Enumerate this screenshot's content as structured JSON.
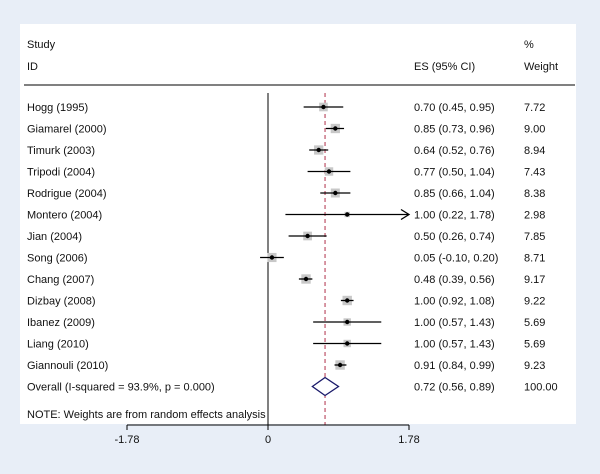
{
  "chart_data": {
    "type": "forest",
    "headers": {
      "study_line1": "Study",
      "study_line2": "ID",
      "es": "ES (95% CI)",
      "weight_line1": "%",
      "weight_line2": "Weight"
    },
    "studies": [
      {
        "id": "Hogg (1995)",
        "es": 0.7,
        "lo": 0.45,
        "hi": 0.95,
        "es_text": "0.70 (0.45, 0.95)",
        "weight": 7.72,
        "weight_text": "7.72"
      },
      {
        "id": "Giamarel (2000)",
        "es": 0.85,
        "lo": 0.73,
        "hi": 0.96,
        "es_text": "0.85 (0.73, 0.96)",
        "weight": 9.0,
        "weight_text": "9.00"
      },
      {
        "id": "Timurk (2003)",
        "es": 0.64,
        "lo": 0.52,
        "hi": 0.76,
        "es_text": "0.64 (0.52, 0.76)",
        "weight": 8.94,
        "weight_text": "8.94"
      },
      {
        "id": "Tripodi (2004)",
        "es": 0.77,
        "lo": 0.5,
        "hi": 1.04,
        "es_text": "0.77 (0.50, 1.04)",
        "weight": 7.43,
        "weight_text": "7.43"
      },
      {
        "id": "Rodrigue (2004)",
        "es": 0.85,
        "lo": 0.66,
        "hi": 1.04,
        "es_text": "0.85 (0.66, 1.04)",
        "weight": 8.38,
        "weight_text": "8.38"
      },
      {
        "id": "Montero (2004)",
        "es": 1.0,
        "lo": 0.22,
        "hi": 1.78,
        "es_text": "1.00 (0.22, 1.78)",
        "weight": 2.98,
        "weight_text": "2.98",
        "arrow_right": true
      },
      {
        "id": "Jian (2004)",
        "es": 0.5,
        "lo": 0.26,
        "hi": 0.74,
        "es_text": "0.50 (0.26, 0.74)",
        "weight": 7.85,
        "weight_text": "7.85"
      },
      {
        "id": "Song (2006)",
        "es": 0.05,
        "lo": -0.1,
        "hi": 0.2,
        "es_text": "0.05 (-0.10, 0.20)",
        "weight": 8.71,
        "weight_text": "8.71"
      },
      {
        "id": "Chang (2007)",
        "es": 0.48,
        "lo": 0.39,
        "hi": 0.56,
        "es_text": "0.48 (0.39, 0.56)",
        "weight": 9.17,
        "weight_text": "9.17"
      },
      {
        "id": "Dizbay (2008)",
        "es": 1.0,
        "lo": 0.92,
        "hi": 1.08,
        "es_text": "1.00 (0.92, 1.08)",
        "weight": 9.22,
        "weight_text": "9.22"
      },
      {
        "id": "Ibanez (2009)",
        "es": 1.0,
        "lo": 0.57,
        "hi": 1.43,
        "es_text": "1.00 (0.57, 1.43)",
        "weight": 5.69,
        "weight_text": "5.69"
      },
      {
        "id": "Liang (2010)",
        "es": 1.0,
        "lo": 0.57,
        "hi": 1.43,
        "es_text": "1.00 (0.57, 1.43)",
        "weight": 5.69,
        "weight_text": "5.69"
      },
      {
        "id": "Giannouli (2010)",
        "es": 0.91,
        "lo": 0.84,
        "hi": 0.99,
        "es_text": "0.91 (0.84, 0.99)",
        "weight": 9.23,
        "weight_text": "9.23"
      }
    ],
    "overall": {
      "label": "Overall  (I-squared = 93.9%, p = 0.000)",
      "es": 0.72,
      "lo": 0.56,
      "hi": 0.89,
      "es_text": "0.72 (0.56, 0.89)",
      "weight_text": "100.00"
    },
    "note": "NOTE: Weights are from random effects analysis",
    "x_ticks": [
      {
        "value": -1.78,
        "label": "-1.78"
      },
      {
        "value": 0,
        "label": "0"
      },
      {
        "value": 1.78,
        "label": "1.78"
      }
    ],
    "xlim": [
      -1.78,
      1.78
    ],
    "reference_line": 0,
    "colors": {
      "background": "#e8eef7",
      "panel": "#ffffff",
      "box": "#c8c8c8",
      "line": "#000000",
      "dashed": "#b0304a"
    }
  }
}
